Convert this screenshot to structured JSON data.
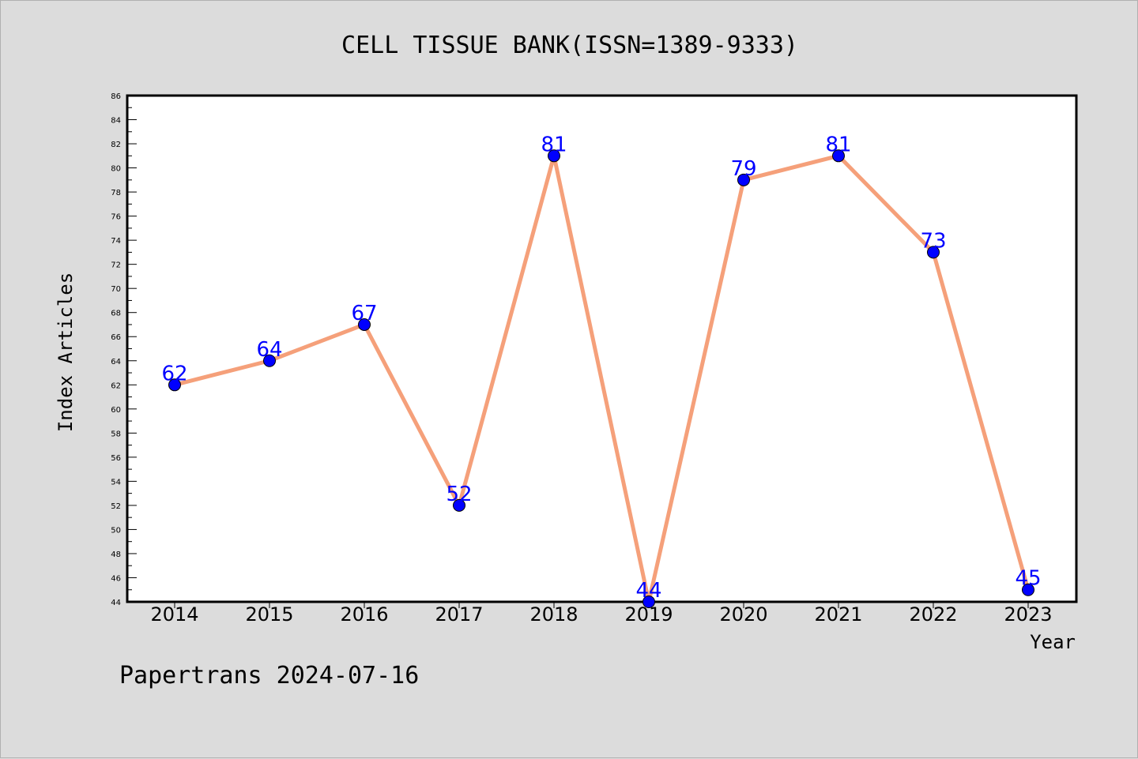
{
  "chart_data": {
    "type": "line",
    "title": "CELL TISSUE BANK(ISSN=1389-9333)",
    "xlabel": "Year",
    "ylabel": "Index Articles",
    "categories": [
      "2014",
      "2015",
      "2016",
      "2017",
      "2018",
      "2019",
      "2020",
      "2021",
      "2022",
      "2023"
    ],
    "series": [
      {
        "values": [
          62,
          64,
          67,
          52,
          81,
          44,
          79,
          81,
          73,
          45
        ]
      }
    ],
    "ylim": [
      44,
      86
    ],
    "yticks": [
      "44",
      "46",
      "48",
      "50",
      "52",
      "54",
      "56",
      "58",
      "60",
      "62",
      "64",
      "66",
      "68",
      "70",
      "72",
      "74",
      "76",
      "78",
      "80",
      "82",
      "84",
      "86"
    ],
    "grid": false,
    "legend": "none",
    "data_labels": true
  },
  "footer": "Papertrans 2024-07-16",
  "colors": {
    "background": "#dcdcdc",
    "plot_background": "#ffffff",
    "line": "#f5a07a",
    "marker": "#0000ff",
    "data_label": "#0000ff"
  }
}
